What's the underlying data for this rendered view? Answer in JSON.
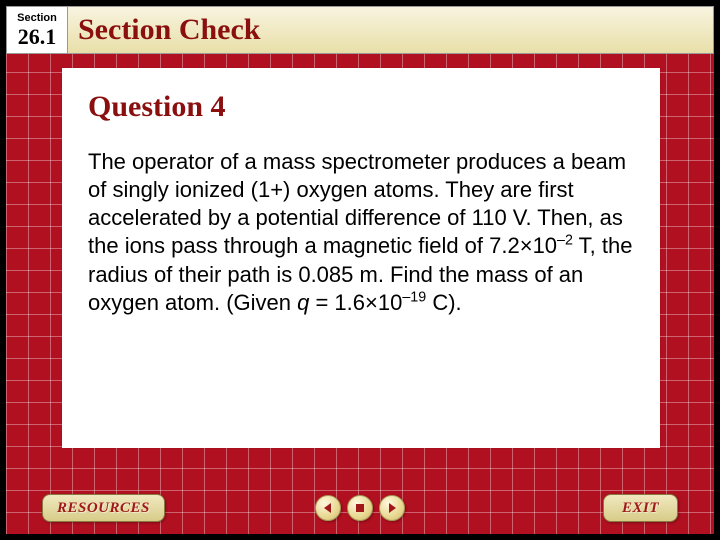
{
  "header": {
    "section_label": "Section",
    "section_number": "26.1",
    "title": "Section Check"
  },
  "content": {
    "question_heading": "Question 4",
    "body_html": "The operator of a mass spectrometer produces a beam of singly ionized (1+) oxygen atoms. They are first accelerated by a potential difference of 110 V. Then, as the ions pass through a magnetic field of 7.2×10<sup>–2</sup> T, the radius of their path is 0.085 m. Find the mass of an oxygen atom. (Given <i>q</i> = 1.6×10<sup>–19</sup> C)."
  },
  "footer": {
    "resources_label": "RESOURCES",
    "exit_label": "EXIT"
  },
  "colors": {
    "grid_bg": "#b01020",
    "accent_text": "#8a1010",
    "tab_text": "#a01818"
  }
}
